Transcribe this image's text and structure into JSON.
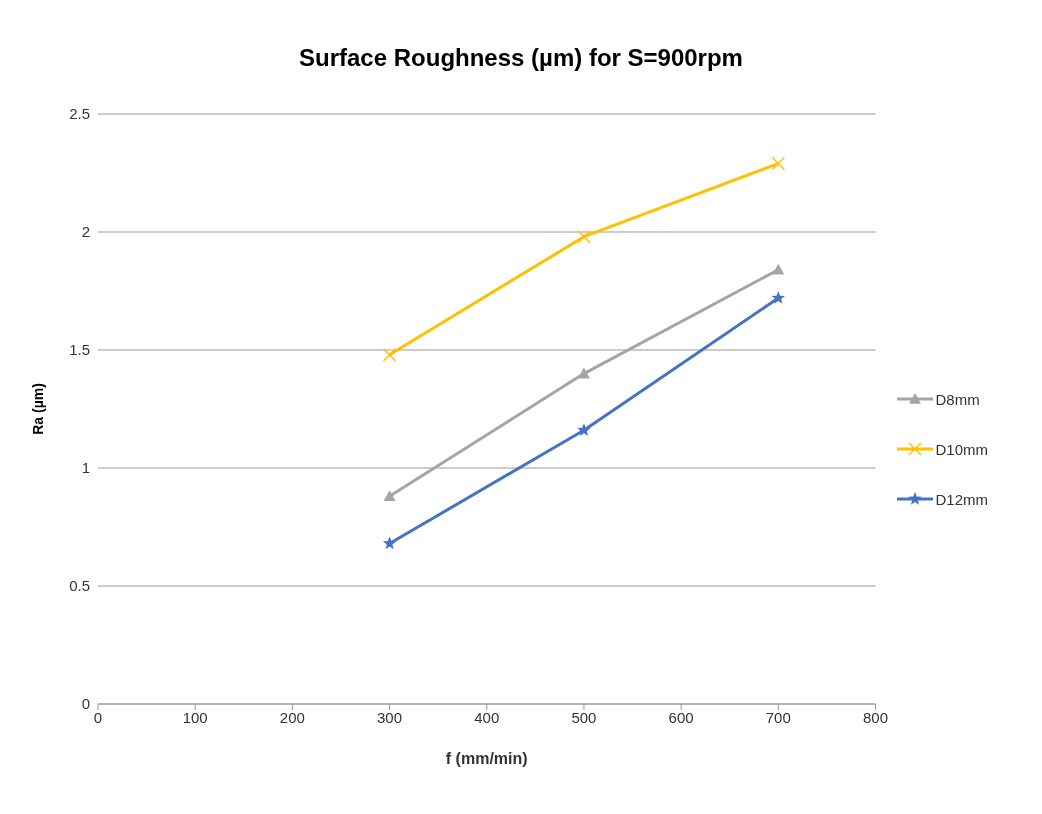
{
  "chart_data": {
    "type": "line",
    "title": "Surface Roughness (µm) for S=900rpm",
    "xlabel": "f (mm/min)",
    "ylabel": "Ra  (µm)",
    "x": [
      300,
      500,
      700
    ],
    "series": [
      {
        "name": "D8mm",
        "color": "#a5a5a5",
        "marker": "triangle",
        "values": [
          0.88,
          1.4,
          1.84
        ]
      },
      {
        "name": "D10mm",
        "color": "#ffc000",
        "marker": "cross",
        "values": [
          1.48,
          1.98,
          2.29
        ]
      },
      {
        "name": "D12mm",
        "color": "#4472c4",
        "marker": "star",
        "values": [
          0.68,
          1.16,
          1.72
        ]
      }
    ],
    "xlim": [
      0,
      800
    ],
    "xticks": [
      0,
      100,
      200,
      300,
      400,
      500,
      600,
      700,
      800
    ],
    "ylim": [
      0,
      2.5
    ],
    "yticks": [
      0,
      0.5,
      1,
      1.5,
      2,
      2.5
    ],
    "grid": "y",
    "legend": "right",
    "line_style": "solid"
  }
}
